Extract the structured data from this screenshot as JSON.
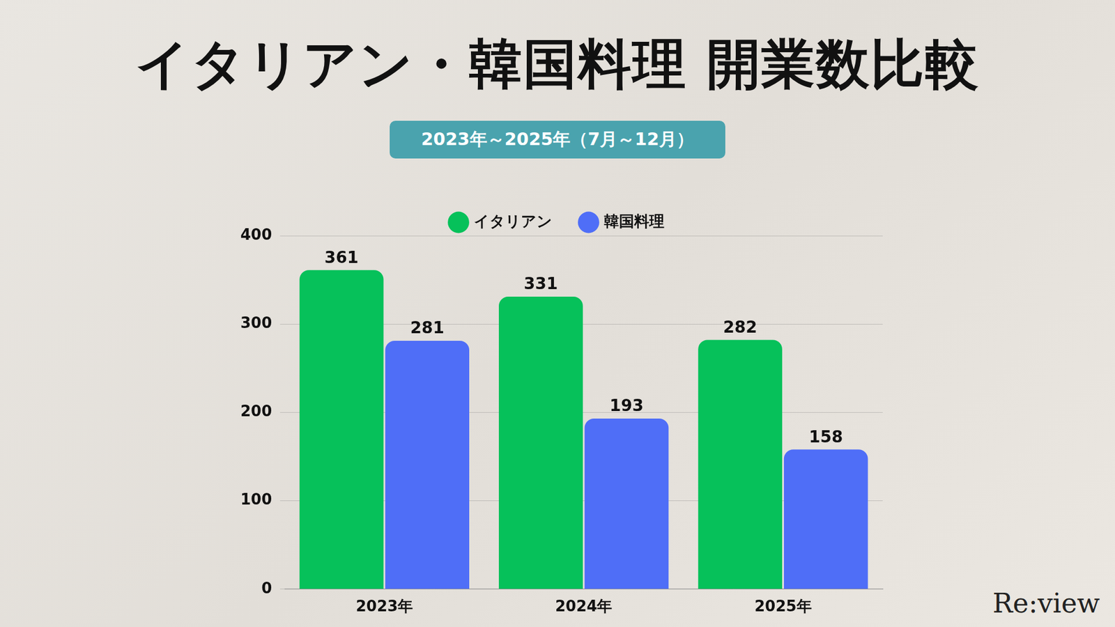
{
  "chart_data": {
    "type": "bar",
    "title": "イタリアン・韓国料理 開業数比較",
    "subtitle": "2023年～2025年（7月～12月）",
    "categories": [
      "2023年",
      "2024年",
      "2025年"
    ],
    "series": [
      {
        "name": "イタリアン",
        "color": "#06c15a",
        "values": [
          361,
          331,
          282
        ]
      },
      {
        "name": "韓国料理",
        "color": "#4f6ef7",
        "values": [
          281,
          193,
          158
        ]
      }
    ],
    "ylim": [
      0,
      400
    ],
    "yticks": [
      0,
      100,
      200,
      300,
      400
    ],
    "grid": true,
    "legend": "top",
    "data_labels": true,
    "annotations": [
      "Re:view"
    ]
  }
}
